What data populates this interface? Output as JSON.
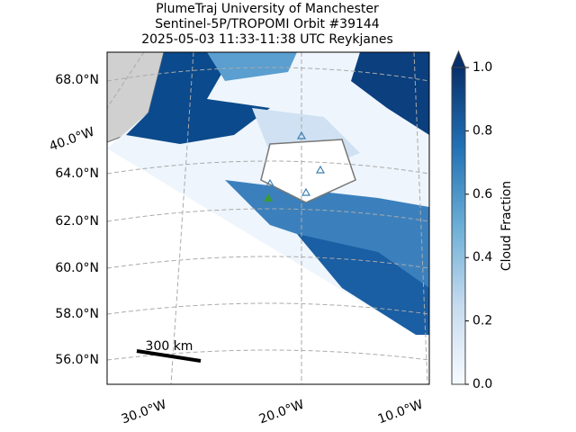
{
  "title": [
    "PlumeTraj    University of Manchester",
    "Sentinel-5P/TROPOMI Orbit #39144",
    "2025-05-03   11:33-11:38 UTC   Reykjanes"
  ],
  "lat_labels": [
    "68.0°N",
    "64.0°N",
    "62.0°N",
    "60.0°N",
    "58.0°N",
    "56.0°N"
  ],
  "lon_labels": [
    "40.0°W",
    "30.0°W",
    "20.0°W",
    "10.0°W"
  ],
  "scale_bar": "300 km",
  "colorbar": {
    "label": "Cloud Fraction",
    "ylim": [
      0,
      1
    ],
    "ticks": [
      {
        "value": 0,
        "label": "0.0"
      },
      {
        "value": 0.2,
        "label": "0.2"
      },
      {
        "value": 0.4,
        "label": "0.4"
      },
      {
        "value": 0.6,
        "label": "0.6"
      },
      {
        "value": 0.8,
        "label": "0.8"
      },
      {
        "value": 1,
        "label": "1.0"
      }
    ]
  }
}
